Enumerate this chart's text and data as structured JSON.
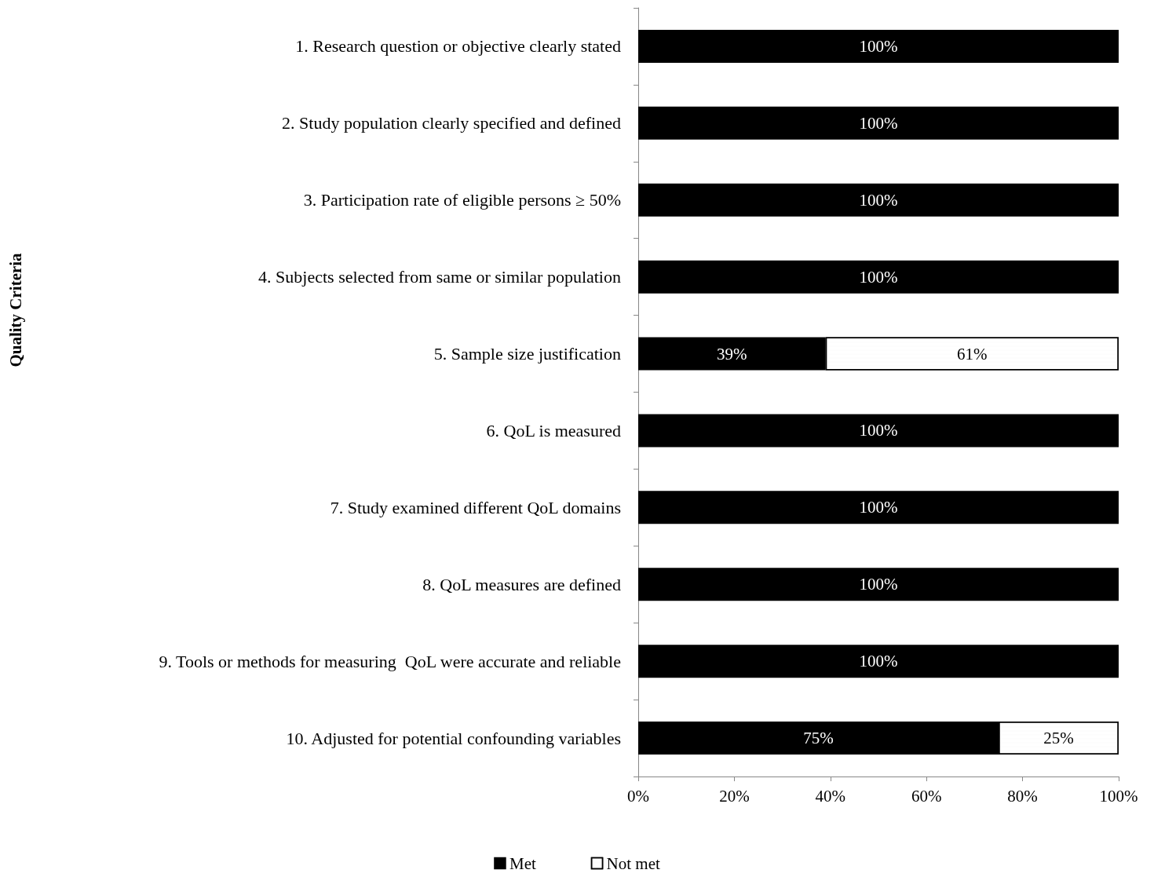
{
  "chart_data": {
    "type": "bar",
    "orientation": "horizontal",
    "stacked": true,
    "annotations": [
      "Quality Criteria"
    ],
    "categories": [
      "1. Research question or objective clearly stated",
      "2. Study population clearly specified and defined",
      "3. Participation rate of eligible persons ≥ 50%",
      "4. Subjects selected from same or similar population",
      "5. Sample size justification",
      "6. QoL is measured",
      "7. Study examined different QoL domains",
      "8. QoL measures are defined",
      "9. Tools or methods for measuring  QoL were accurate and reliable",
      "10. Adjusted for potential confounding variables"
    ],
    "series": [
      {
        "name": "Met",
        "color": "#000000",
        "values": [
          100,
          100,
          100,
          100,
          39,
          100,
          100,
          100,
          100,
          75
        ],
        "value_labels": [
          "100%",
          "100%",
          "100%",
          "100%",
          "39%",
          "100%",
          "100%",
          "100%",
          "100%",
          "75%"
        ]
      },
      {
        "name": "Not met",
        "color": "#ffffff",
        "values": [
          null,
          null,
          null,
          null,
          61,
          null,
          null,
          null,
          null,
          25
        ],
        "value_labels": [
          null,
          null,
          null,
          null,
          "61%",
          null,
          null,
          null,
          null,
          "25%"
        ]
      }
    ],
    "xlim": [
      0,
      100
    ],
    "xticks": [
      {
        "value": 0,
        "label": "0%"
      },
      {
        "value": 20,
        "label": "20%"
      },
      {
        "value": 40,
        "label": "40%"
      },
      {
        "value": 60,
        "label": "60%"
      },
      {
        "value": 80,
        "label": "80%"
      },
      {
        "value": 100,
        "label": "100%"
      }
    ],
    "grid": false,
    "legend": "bottom"
  }
}
